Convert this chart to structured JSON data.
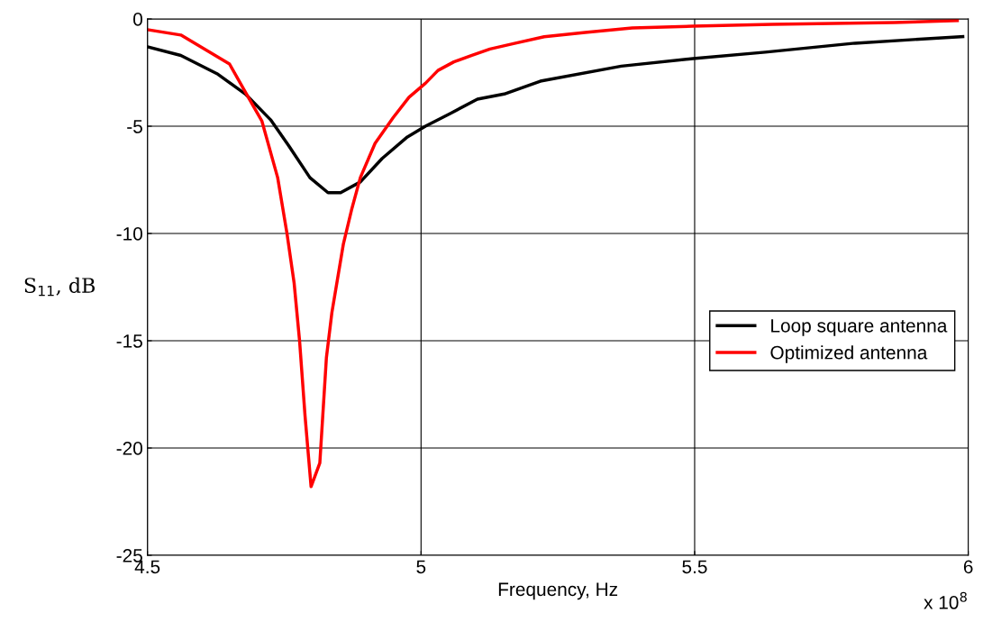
{
  "chart_data": {
    "type": "line",
    "xlabel": "Frequency, Hz",
    "ylabel": "S$_{11}$, dB",
    "xlim": [
      4.5,
      6
    ],
    "xticks": [
      4.5,
      5,
      5.5,
      6
    ],
    "ylim": [
      -25,
      0
    ],
    "yticks": [
      -25,
      -20,
      -15,
      -10,
      -5,
      0
    ],
    "grid": true,
    "legend": "right",
    "annotations": [
      "x 10$^{8}$"
    ],
    "series": [
      {
        "name": "Loop square antenna",
        "color": "#000000",
        "x": [
          4.5,
          4.561,
          4.627,
          4.679,
          4.725,
          4.758,
          4.797,
          4.83,
          4.853,
          4.889,
          4.929,
          4.975,
          5.008,
          5.054,
          5.103,
          5.152,
          5.218,
          5.366,
          5.497,
          5.629,
          5.793,
          5.99
        ],
        "values": [
          -1.3,
          -1.7,
          -2.55,
          -3.5,
          -4.7,
          -5.9,
          -7.4,
          -8.1,
          -8.1,
          -7.6,
          -6.5,
          -5.5,
          -5.0,
          -4.4,
          -3.74,
          -3.5,
          -2.9,
          -2.2,
          -1.85,
          -1.55,
          -1.13,
          -0.82
        ]
      },
      {
        "name": "Optimized antenna",
        "color": "#ff0000",
        "x": [
          4.5,
          4.561,
          4.65,
          4.692,
          4.709,
          4.738,
          4.755,
          4.768,
          4.778,
          4.788,
          4.799,
          4.815,
          4.827,
          4.837,
          4.858,
          4.873,
          4.889,
          4.916,
          4.949,
          4.978,
          5.008,
          5.031,
          5.06,
          5.093,
          5.126,
          5.169,
          5.225,
          5.3,
          5.386,
          5.497,
          5.642,
          5.865,
          5.98
        ],
        "values": [
          -0.5,
          -0.75,
          -2.1,
          -4.0,
          -4.75,
          -7.4,
          -10.0,
          -12.3,
          -15.0,
          -18.5,
          -21.8,
          -20.7,
          -15.8,
          -13.7,
          -10.5,
          -8.9,
          -7.4,
          -5.8,
          -4.6,
          -3.65,
          -3.0,
          -2.4,
          -2.0,
          -1.7,
          -1.4,
          -1.15,
          -0.83,
          -0.63,
          -0.42,
          -0.34,
          -0.25,
          -0.17,
          -0.08
        ]
      }
    ]
  }
}
